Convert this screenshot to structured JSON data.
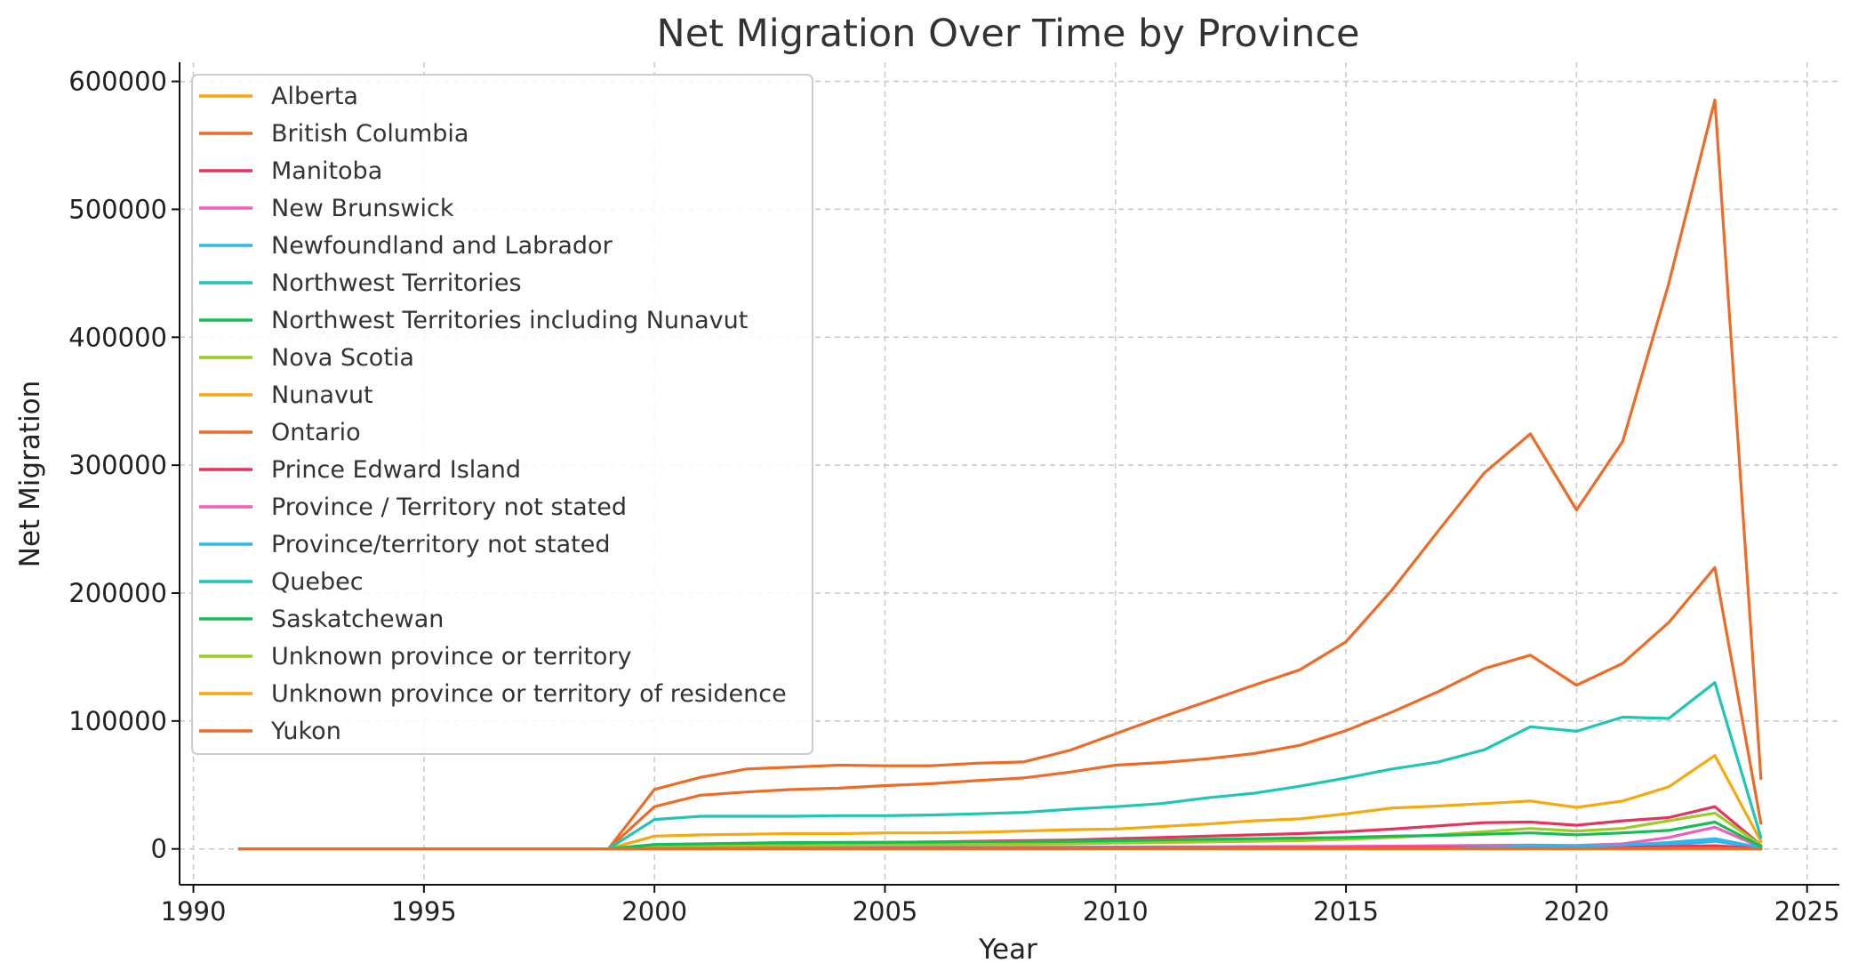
{
  "chart_data": {
    "type": "line",
    "title": "Net Migration Over Time by Province",
    "xlabel": "Year",
    "ylabel": "Net Migration",
    "xlim": [
      1989.7,
      2025.7
    ],
    "ylim": [
      -28000,
      615000
    ],
    "xticks": [
      1990,
      1995,
      2000,
      2005,
      2010,
      2015,
      2020,
      2025
    ],
    "yticks": [
      0,
      100000,
      200000,
      300000,
      400000,
      500000,
      600000
    ],
    "grid": true,
    "legend_position": "top-left",
    "x": [
      1991,
      1992,
      1993,
      1994,
      1995,
      1996,
      1997,
      1998,
      1999,
      2000,
      2001,
      2002,
      2003,
      2004,
      2005,
      2006,
      2007,
      2008,
      2009,
      2010,
      2011,
      2012,
      2013,
      2014,
      2015,
      2016,
      2017,
      2018,
      2019,
      2020,
      2021,
      2022,
      2023,
      2024
    ],
    "series": [
      {
        "name": "Alberta",
        "color": "#f5a90d",
        "values": [
          0,
          0,
          0,
          0,
          0,
          0,
          0,
          0,
          0,
          10000,
          11000,
          11500,
          12000,
          12000,
          12500,
          12500,
          13000,
          14000,
          15000,
          15500,
          17500,
          19500,
          22000,
          23500,
          27500,
          32000,
          33500,
          35500,
          37500,
          32500,
          37500,
          48500,
          73000,
          6000
        ]
      },
      {
        "name": "British Columbia",
        "color": "#ef6a25",
        "values": [
          0,
          0,
          0,
          0,
          0,
          0,
          0,
          0,
          0,
          33000,
          42000,
          44500,
          46500,
          47500,
          49500,
          51000,
          53500,
          55500,
          60000,
          65500,
          67500,
          70500,
          74500,
          81000,
          92500,
          107000,
          123000,
          141000,
          151500,
          128000,
          145000,
          177000,
          220000,
          20000
        ]
      },
      {
        "name": "Manitoba",
        "color": "#e8325e",
        "values": [
          0,
          0,
          0,
          0,
          0,
          0,
          0,
          0,
          0,
          3000,
          3500,
          4000,
          4500,
          5000,
          5000,
          5500,
          6000,
          6500,
          7000,
          8000,
          9000,
          10000,
          11000,
          12000,
          13500,
          15500,
          18000,
          20500,
          21000,
          18500,
          22000,
          24500,
          33000,
          3000
        ]
      },
      {
        "name": "New Brunswick",
        "color": "#f35bbc",
        "values": [
          0,
          0,
          0,
          0,
          0,
          0,
          0,
          0,
          0,
          800,
          900,
          1000,
          1000,
          1100,
          1100,
          1200,
          1200,
          1300,
          1400,
          1500,
          1600,
          1700,
          1800,
          1900,
          2000,
          2200,
          2500,
          2800,
          3000,
          2700,
          4000,
          9000,
          17000,
          1500
        ]
      },
      {
        "name": "Newfoundland and Labrador",
        "color": "#2db7ef",
        "values": [
          0,
          0,
          0,
          0,
          0,
          0,
          0,
          0,
          0,
          400,
          450,
          500,
          500,
          550,
          550,
          600,
          600,
          650,
          700,
          750,
          800,
          850,
          900,
          950,
          1000,
          1100,
          1200,
          1300,
          1400,
          1300,
          1700,
          3000,
          6000,
          800
        ]
      },
      {
        "name": "Northwest Territories",
        "color": "#1dc6b5",
        "values": [
          0,
          0,
          0,
          0,
          0,
          0,
          0,
          0,
          0,
          200,
          220,
          230,
          240,
          250,
          260,
          270,
          280,
          290,
          300,
          310,
          320,
          330,
          340,
          350,
          360,
          370,
          380,
          390,
          400,
          380,
          420,
          500,
          700,
          100
        ]
      },
      {
        "name": "Northwest Territories including Nunavut",
        "color": "#16bd55",
        "values": [
          0,
          0,
          0,
          0,
          0,
          0,
          0,
          0,
          0,
          0,
          0,
          0,
          0,
          0,
          0,
          0,
          0,
          0,
          0,
          0,
          0,
          0,
          0,
          0,
          0,
          0,
          0,
          0,
          0,
          0,
          0,
          0,
          0,
          0
        ]
      },
      {
        "name": "Nova Scotia",
        "color": "#9acc24",
        "values": [
          0,
          0,
          0,
          0,
          0,
          0,
          0,
          0,
          0,
          2000,
          2200,
          2400,
          2600,
          2800,
          3000,
          3200,
          3400,
          3700,
          4000,
          4500,
          5000,
          5500,
          6000,
          6500,
          7500,
          9000,
          11000,
          13500,
          16000,
          14000,
          16000,
          22000,
          28000,
          3000
        ]
      },
      {
        "name": "Nunavut",
        "color": "#f5a90d",
        "values": [
          0,
          0,
          0,
          0,
          0,
          0,
          0,
          0,
          0,
          100,
          110,
          120,
          130,
          140,
          150,
          160,
          170,
          180,
          190,
          200,
          210,
          220,
          230,
          240,
          250,
          260,
          270,
          280,
          290,
          280,
          300,
          350,
          450,
          80
        ]
      },
      {
        "name": "Ontario",
        "color": "#ef6a25",
        "values": [
          0,
          0,
          0,
          0,
          0,
          0,
          0,
          0,
          0,
          46500,
          56000,
          62500,
          64000,
          65500,
          65000,
          65000,
          67000,
          68000,
          77000,
          90000,
          103000,
          115500,
          128000,
          140000,
          162000,
          202500,
          248500,
          294000,
          324500,
          265000,
          318500,
          442000,
          585500,
          55000
        ]
      },
      {
        "name": "Prince Edward Island",
        "color": "#e8325e",
        "values": [
          0,
          0,
          0,
          0,
          0,
          0,
          0,
          0,
          0,
          300,
          320,
          340,
          360,
          380,
          400,
          420,
          450,
          480,
          520,
          560,
          600,
          650,
          700,
          750,
          800,
          900,
          1000,
          1100,
          1200,
          1100,
          1300,
          1800,
          2500,
          400
        ]
      },
      {
        "name": "Province / Territory not stated",
        "color": "#f35bbc",
        "values": [
          0,
          0,
          0,
          0,
          0,
          0,
          0,
          0,
          0,
          0,
          0,
          0,
          0,
          0,
          0,
          0,
          0,
          0,
          0,
          0,
          0,
          0,
          0,
          0,
          0,
          0,
          0,
          0,
          0,
          0,
          0,
          0,
          0,
          0
        ]
      },
      {
        "name": "Province/territory not stated",
        "color": "#2db7ef",
        "values": [
          0,
          0,
          0,
          0,
          0,
          0,
          0,
          0,
          0,
          0,
          0,
          0,
          0,
          0,
          0,
          0,
          0,
          0,
          0,
          0,
          0,
          0,
          0,
          0,
          0,
          0,
          0,
          1000,
          2500,
          2000,
          3000,
          5000,
          8000,
          1000
        ]
      },
      {
        "name": "Quebec",
        "color": "#1dc6b5",
        "values": [
          0,
          0,
          0,
          0,
          0,
          0,
          0,
          0,
          0,
          23000,
          25500,
          25500,
          25500,
          26000,
          26000,
          26500,
          27500,
          28500,
          31000,
          33000,
          35500,
          40000,
          43500,
          49000,
          55500,
          62500,
          68000,
          77500,
          95500,
          92000,
          103000,
          102000,
          130000,
          9000
        ]
      },
      {
        "name": "Saskatchewan",
        "color": "#16bd55",
        "values": [
          0,
          0,
          0,
          0,
          0,
          0,
          0,
          0,
          0,
          3500,
          4000,
          4500,
          5000,
          5000,
          5200,
          5400,
          5600,
          5800,
          6000,
          6500,
          7000,
          7500,
          8000,
          8500,
          9000,
          10000,
          10500,
          11500,
          12500,
          11000,
          12500,
          14500,
          21000,
          2000
        ]
      },
      {
        "name": "Unknown province or territory",
        "color": "#9acc24",
        "values": [
          0,
          0,
          0,
          0,
          0,
          0,
          0,
          0,
          0,
          0,
          0,
          0,
          0,
          0,
          0,
          0,
          0,
          0,
          0,
          0,
          0,
          0,
          0,
          0,
          0,
          0,
          0,
          0,
          0,
          0,
          0,
          0,
          0,
          0
        ]
      },
      {
        "name": "Unknown province or territory of residence",
        "color": "#f5a90d",
        "values": [
          0,
          0,
          0,
          0,
          0,
          0,
          0,
          0,
          0,
          0,
          0,
          0,
          0,
          0,
          0,
          0,
          0,
          0,
          0,
          0,
          0,
          0,
          0,
          0,
          0,
          0,
          0,
          0,
          0,
          0,
          0,
          0,
          0,
          0
        ]
      },
      {
        "name": "Yukon",
        "color": "#ef6a25",
        "values": [
          0,
          0,
          0,
          0,
          0,
          0,
          0,
          0,
          0,
          100,
          110,
          120,
          130,
          140,
          150,
          160,
          170,
          180,
          190,
          200,
          210,
          220,
          230,
          240,
          250,
          260,
          270,
          280,
          290,
          280,
          300,
          350,
          450,
          80
        ]
      }
    ]
  }
}
